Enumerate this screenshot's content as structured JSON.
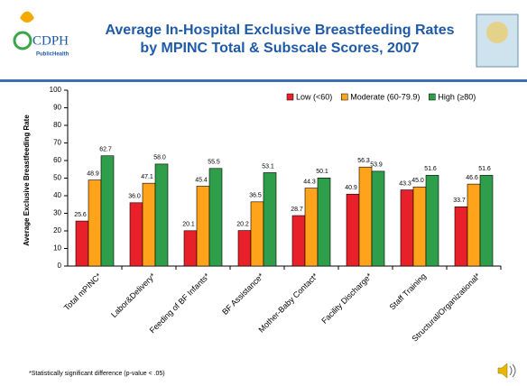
{
  "chart_data": {
    "type": "bar",
    "title_lines": [
      "Average In-Hospital Exclusive Breastfeeding Rates",
      "by MPINC Total & Subscale Scores, 2007"
    ],
    "logo_text": "CDPH",
    "logo_subtext": "PublicHealth",
    "y_label": "Average Exclusive Breastfeeding Rate",
    "note": "*Statistically significant difference (p-value < .05)",
    "categories": [
      "Total mPINC*",
      "Labor&Delivery*",
      "Feeding of BF Infants*",
      "BF Assistance*",
      "Mother-Baby Contact*",
      "Facility Discharge*",
      "Staff Training",
      "Structural/Organizational*"
    ],
    "series": [
      {
        "name": "Low (<60)",
        "color": "#e8202a",
        "values": [
          25.6,
          36.0,
          20.1,
          20.2,
          28.7,
          40.9,
          43.3,
          33.7
        ],
        "value_labels": [
          "25.6",
          "36.0",
          "20.1",
          "20.2",
          "28.7",
          "40.9",
          "43.3",
          "33.7"
        ]
      },
      {
        "name": "Moderate (60-79.9)",
        "color": "#ffa31a",
        "values": [
          48.9,
          47.1,
          45.4,
          36.5,
          44.3,
          56.3,
          45.0,
          46.6
        ],
        "value_labels": [
          "48.9",
          "47.1",
          "45.4",
          "36.5",
          "44.3",
          "56.3",
          "45.0",
          "46.6"
        ]
      },
      {
        "name": "High (≥80)",
        "color": "#2f9e4a",
        "values": [
          62.7,
          58.0,
          55.5,
          53.1,
          50.1,
          53.9,
          51.6,
          51.6
        ],
        "value_labels": [
          "62.7",
          "58.0",
          "55.5",
          "53.1",
          "50.1",
          "53.9",
          "51.6",
          "51.6"
        ]
      }
    ],
    "ylim": [
      0,
      100
    ],
    "yticks": [
      0,
      10,
      20,
      30,
      40,
      50,
      60,
      70,
      80,
      90,
      100
    ],
    "legend": "top-right"
  }
}
